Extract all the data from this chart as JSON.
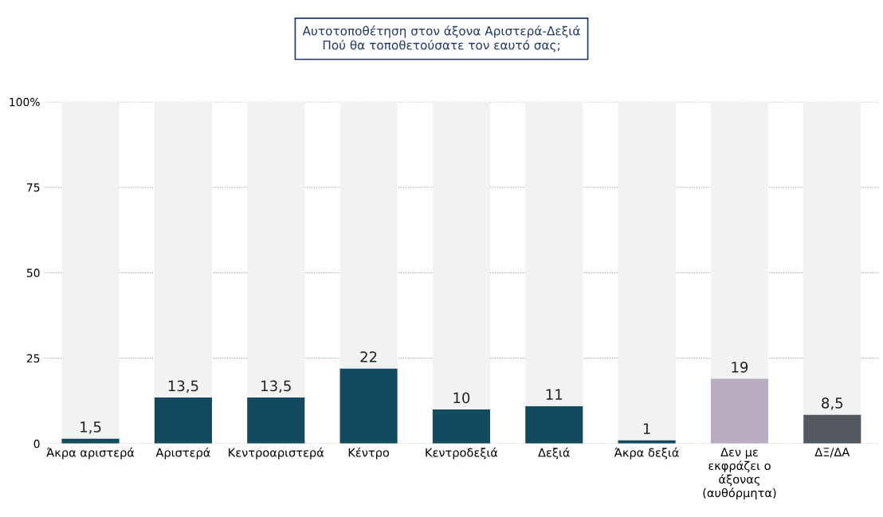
{
  "chart_data": {
    "type": "bar",
    "stacked": true,
    "title": "Αυτοτοποθέτηση στον άξονα Αριστερά-Δεξιά",
    "subtitle": "Πού θα τοποθετούσατε τον εαυτό σας;",
    "categories": [
      "Άκρα αριστερά",
      "Αριστερά",
      "Κεντροαριστερά",
      "Κέντρο",
      "Κεντροδεξιά",
      "Δεξιά",
      "Άκρα δεξιά",
      "Δεν με\nεκφράζει ο\nάξονας\n(αυθόρμητα)",
      "ΔΞ/ΔΑ"
    ],
    "series": [
      {
        "colors": [
          "#134a5e",
          "#134a5e",
          "#134a5e",
          "#134a5e",
          "#134a5e",
          "#134a5e",
          "#134a5e",
          "#b8adc0",
          "#54585f"
        ],
        "values": [
          1.5,
          13.5,
          13.5,
          22,
          10,
          11,
          1,
          19,
          8.5
        ],
        "value_labels": [
          "1,5",
          "13,5",
          "13,5",
          "22",
          "10",
          "11",
          "1",
          "19",
          "8,5"
        ]
      },
      {
        "color": "#f2f2f2",
        "values": [
          98.5,
          86.5,
          86.5,
          78,
          90,
          89,
          99,
          81,
          91.5
        ]
      }
    ],
    "ylim": [
      0,
      100
    ],
    "yticks": [
      0,
      25,
      50,
      75,
      {
        "value": 100,
        "label": "100%"
      }
    ],
    "grid": "y",
    "line_style": "dotted"
  }
}
